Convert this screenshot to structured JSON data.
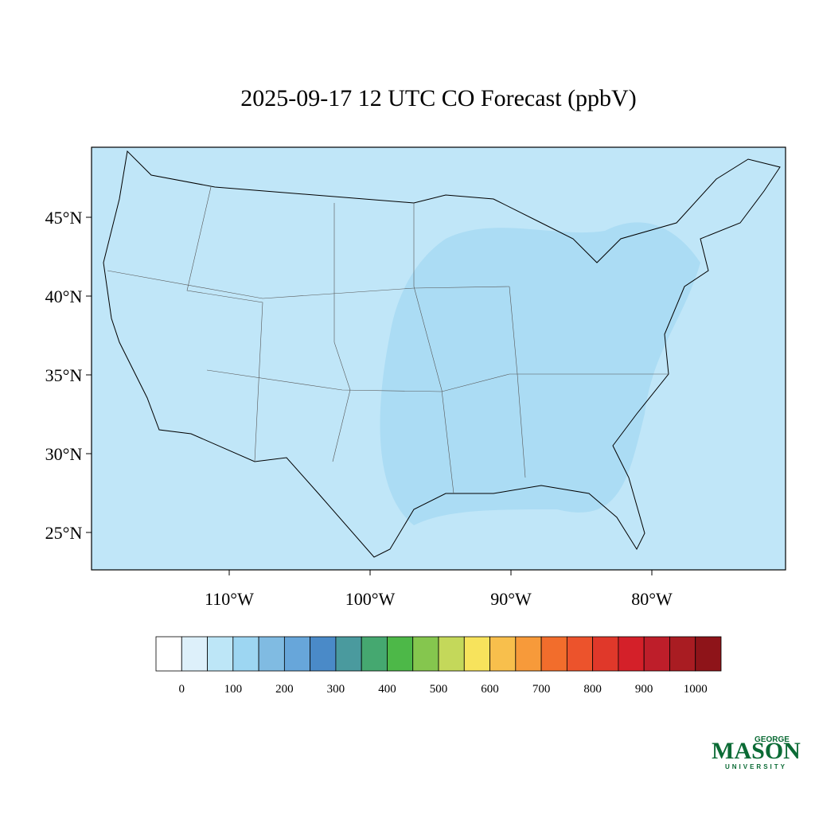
{
  "title": "2025-09-17 12 UTC CO Forecast (ppbV)",
  "map": {
    "background": "#c0e6f8",
    "lat_ticks": [
      {
        "value": 45,
        "label": "45°N"
      },
      {
        "value": 40,
        "label": "40°N"
      },
      {
        "value": 35,
        "label": "35°N"
      },
      {
        "value": 30,
        "label": "30°N"
      },
      {
        "value": 25,
        "label": "25°N"
      }
    ],
    "lon_ticks": [
      {
        "value": -110,
        "label": "110°W"
      },
      {
        "value": -100,
        "label": "100°W"
      },
      {
        "value": -90,
        "label": "90°W"
      },
      {
        "value": -80,
        "label": "80°W"
      }
    ]
  },
  "colorbar": {
    "colors": [
      "#ffffff",
      "#ddf0fa",
      "#bde6f7",
      "#9dd6f2",
      "#80bbe2",
      "#67a6da",
      "#4a8ac8",
      "#4a9a9e",
      "#45a870",
      "#4db848",
      "#85c64e",
      "#c4d85a",
      "#f7e35c",
      "#f8bf4c",
      "#f79a3a",
      "#f26d2c",
      "#ec532c",
      "#e0382a",
      "#d42029",
      "#be1e2a",
      "#a91c22",
      "#8e1419"
    ],
    "ticks": [
      0,
      100,
      200,
      300,
      400,
      500,
      600,
      700,
      800,
      900,
      1000
    ]
  },
  "logo": {
    "top": "GEORGE",
    "main": "MASON",
    "bottom": "UNIVERSITY"
  }
}
